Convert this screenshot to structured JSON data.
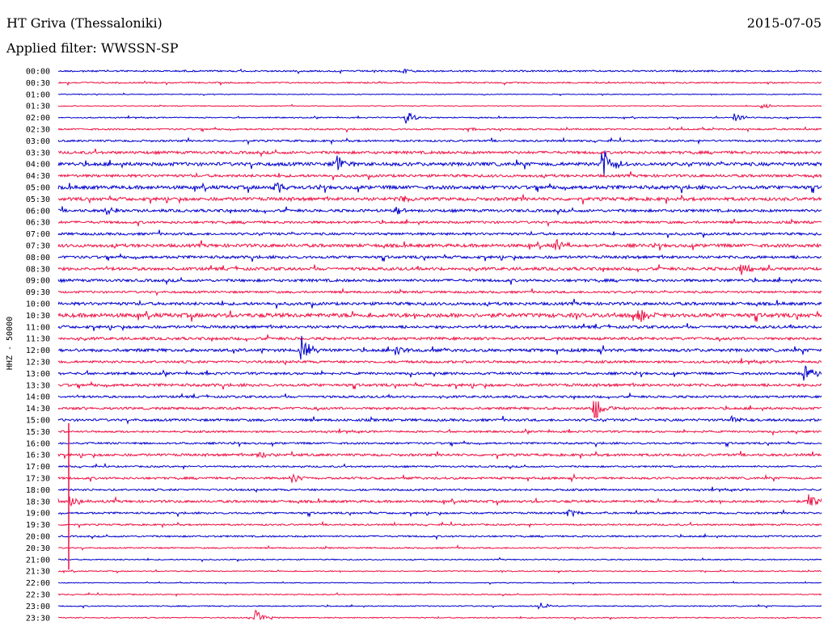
{
  "header": {
    "station": "HT Griva (Thessaloniki)",
    "date": "2015-07-05",
    "filter": "Applied filter: WWSSN-SP"
  },
  "chart_data": {
    "type": "line",
    "title": "HT Griva (Thessaloniki)",
    "ylabel": "HHZ - 50000",
    "xlabel": "",
    "row_labels": [
      "00:00",
      "00:30",
      "01:00",
      "01:30",
      "02:00",
      "02:30",
      "03:00",
      "03:30",
      "04:00",
      "04:30",
      "05:00",
      "05:30",
      "06:00",
      "06:30",
      "07:00",
      "07:30",
      "08:00",
      "08:30",
      "09:00",
      "09:30",
      "10:00",
      "10:30",
      "11:00",
      "11:30",
      "12:00",
      "12:30",
      "13:00",
      "13:30",
      "14:00",
      "14:30",
      "15:00",
      "15:30",
      "16:00",
      "16:30",
      "17:00",
      "17:30",
      "18:00",
      "18:30",
      "19:00",
      "19:30",
      "20:00",
      "20:30",
      "21:00",
      "21:30",
      "22:00",
      "22:30",
      "23:00",
      "23:30"
    ],
    "row_colors": [
      "#0000cc",
      "#ee1144"
    ],
    "noise_levels": [
      0.6,
      0.5,
      0.3,
      0.3,
      0.4,
      0.6,
      0.7,
      1.0,
      1.3,
      1.0,
      1.3,
      1.2,
      1.0,
      0.9,
      0.9,
      1.2,
      1.0,
      1.1,
      1.0,
      0.8,
      1.1,
      1.5,
      1.0,
      1.0,
      1.1,
      0.9,
      0.9,
      1.0,
      0.8,
      0.9,
      0.9,
      0.7,
      0.7,
      0.9,
      0.6,
      0.8,
      0.7,
      0.9,
      0.7,
      0.6,
      0.6,
      0.5,
      0.4,
      0.4,
      0.3,
      0.4,
      0.4,
      0.4
    ],
    "events": [
      {
        "row": 0,
        "x": 497,
        "amp": 3
      },
      {
        "row": 3,
        "x": 942,
        "amp": 4
      },
      {
        "row": 4,
        "x": 502,
        "amp": 8
      },
      {
        "row": 4,
        "x": 908,
        "amp": 6
      },
      {
        "row": 5,
        "x": 575,
        "amp": 3
      },
      {
        "row": 8,
        "x": 413,
        "amp": 16
      },
      {
        "row": 8,
        "x": 745,
        "amp": 22
      },
      {
        "row": 10,
        "x": 340,
        "amp": 10
      },
      {
        "row": 11,
        "x": 496,
        "amp": 6
      },
      {
        "row": 12,
        "x": 130,
        "amp": 6
      },
      {
        "row": 12,
        "x": 487,
        "amp": 6
      },
      {
        "row": 15,
        "x": 686,
        "amp": 10
      },
      {
        "row": 17,
        "x": 916,
        "amp": 8
      },
      {
        "row": 21,
        "x": 790,
        "amp": 8
      },
      {
        "row": 24,
        "x": 373,
        "amp": 20
      },
      {
        "row": 24,
        "x": 488,
        "amp": 8
      },
      {
        "row": 26,
        "x": 993,
        "amp": 18
      },
      {
        "row": 29,
        "x": 735,
        "amp": 18
      },
      {
        "row": 30,
        "x": 905,
        "amp": 6
      },
      {
        "row": 33,
        "x": 320,
        "amp": 6
      },
      {
        "row": 35,
        "x": 360,
        "amp": 7
      },
      {
        "row": 37,
        "x": 87,
        "amp": 10
      },
      {
        "row": 37,
        "x": 1000,
        "amp": 10
      },
      {
        "row": 38,
        "x": 702,
        "amp": 6
      },
      {
        "row": 46,
        "x": 667,
        "amp": 6
      },
      {
        "row": 47,
        "x": 316,
        "amp": 10
      }
    ]
  }
}
